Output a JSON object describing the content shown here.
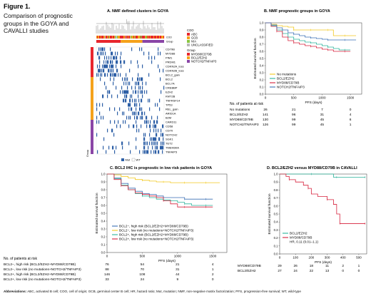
{
  "figure": {
    "label": "Figure 1.",
    "caption": "Comparison of prognostic groups in the GOYA and CAVALLI studies"
  },
  "panel_a": {
    "title": "A. NMF defined clusters in GOYA",
    "annotation_rows": [
      "COO",
      "Group"
    ],
    "genes": [
      "CD79B",
      "MYD88",
      "PIM1",
      "PRDM1",
      "CDKN2A_loss",
      "CDKN2B_loss",
      "BCL2_gain",
      "BCL2",
      "BCL7A",
      "CREBBP",
      "EZH2",
      "KMT2B",
      "TNFRSF14",
      "TP53",
      "REL_gain",
      "ARID1A",
      "B2M",
      "CARD11",
      "CD58",
      "CD70",
      "NOTCH2",
      "SGK1",
      "TET2",
      "TMEM30A",
      "TNFAIP3"
    ],
    "side_label": "Group",
    "coo_legend": {
      "title": "COO",
      "items": [
        {
          "label": "ABC",
          "color": "#e8262d"
        },
        {
          "label": "GCB",
          "color": "#f5a21b"
        },
        {
          "label": "N/A",
          "color": "#8bc640"
        },
        {
          "label": "UNCLASSIFIED",
          "color": "#b8b8b8"
        }
      ]
    },
    "group_legend": {
      "title": "Group",
      "items": [
        {
          "label": "MYD88/CD79B",
          "color": "#e8262d"
        },
        {
          "label": "BCL2/EZH2",
          "color": "#f5a21b"
        },
        {
          "label": "NOTCH2/TNFAIP3",
          "color": "#8a45a6"
        }
      ]
    },
    "mut_legend": {
      "mut": "Mut",
      "wt": "WT"
    }
  },
  "panel_b": {
    "title": "B. NMF prognostic groups in GOYA",
    "chart_data": {
      "type": "line",
      "xlabel": "PFS (days)",
      "ylabel": "Estimated survival function",
      "xlim": [
        0,
        1700
      ],
      "ylim": [
        0.0,
        1.0
      ],
      "xticks": [
        0,
        500,
        1000,
        1500
      ],
      "yticks": [
        0.0,
        0.1,
        0.2,
        0.3,
        0.4,
        0.5,
        0.6,
        0.7,
        0.8,
        0.9,
        1.0
      ],
      "legend_position": "bottom-left",
      "series": [
        {
          "name": "No mutations",
          "color": "#f2c81c",
          "x": [
            0,
            100,
            200,
            300,
            400,
            500,
            600,
            700,
            800,
            900,
            1000,
            1100,
            1200,
            1300,
            1400,
            1500,
            1600
          ],
          "y": [
            1.0,
            0.98,
            0.96,
            0.95,
            0.94,
            0.9,
            0.9,
            0.9,
            0.9,
            0.9,
            0.9,
            0.9,
            0.82,
            0.82,
            0.82,
            0.82,
            0.82
          ]
        },
        {
          "name": "BCL2/EZH2",
          "color": "#2bb39a",
          "x": [
            0,
            100,
            200,
            300,
            400,
            500,
            600,
            700,
            800,
            900,
            1000,
            1100,
            1200,
            1300,
            1400,
            1500
          ],
          "y": [
            1.0,
            0.96,
            0.9,
            0.85,
            0.8,
            0.77,
            0.75,
            0.73,
            0.72,
            0.7,
            0.68,
            0.66,
            0.64,
            0.62,
            0.62,
            0.62
          ]
        },
        {
          "name": "MYD88/CD79B",
          "color": "#d6203b",
          "x": [
            0,
            100,
            200,
            300,
            400,
            500,
            600,
            700,
            800,
            900,
            1000,
            1100,
            1200,
            1300,
            1400,
            1500
          ],
          "y": [
            1.0,
            0.95,
            0.88,
            0.8,
            0.75,
            0.72,
            0.7,
            0.68,
            0.67,
            0.65,
            0.63,
            0.62,
            0.6,
            0.6,
            0.6,
            0.6
          ]
        },
        {
          "name": "NOTCH2/TNFAIP3",
          "color": "#3a6fb5",
          "x": [
            0,
            100,
            200,
            300,
            400,
            500,
            600,
            700,
            800,
            900,
            1000,
            1100,
            1200,
            1300,
            1400,
            1500,
            1600
          ],
          "y": [
            1.0,
            0.97,
            0.93,
            0.9,
            0.86,
            0.84,
            0.82,
            0.8,
            0.79,
            0.78,
            0.77,
            0.76,
            0.76,
            0.76,
            0.76,
            0.76,
            0.76
          ]
        }
      ]
    },
    "risk_table": {
      "title": "No. of patients at risk",
      "rows": [
        {
          "label": "No mutations",
          "values": [
            "26",
            "21",
            "7",
            "0"
          ]
        },
        {
          "label": "BCL2/EZH2",
          "values": [
            "141",
            "96",
            "31",
            "4"
          ]
        },
        {
          "label": "MYD88/CD79B",
          "values": [
            "130",
            "99",
            "45",
            "6"
          ]
        },
        {
          "label": "NOTCH2/TNFAIP3",
          "values": [
            "126",
            "99",
            "45",
            "1"
          ]
        }
      ]
    }
  },
  "panel_c": {
    "title": "C. BCL2 IHC is prognostic in low risk patients in GOYA",
    "chart_data": {
      "type": "line",
      "xlabel": "PFS (days)",
      "ylabel": "Estimated survival function",
      "xlim": [
        0,
        1700
      ],
      "ylim": [
        0.0,
        1.0
      ],
      "xticks": [
        0,
        500,
        1000,
        1500
      ],
      "yticks": [
        0.0,
        0.1,
        0.2,
        0.3,
        0.4,
        0.5,
        0.6,
        0.7,
        0.8,
        0.9,
        1.0
      ],
      "legend_position": "bottom-left",
      "series": [
        {
          "name": "BCL2−, high risk (BCL2/EZH2+MYD88/CD79B)",
          "color": "#3a6fb5",
          "x": [
            0,
            100,
            200,
            300,
            400,
            500,
            600,
            700,
            800,
            900,
            1000,
            1100,
            1200,
            1300,
            1400,
            1500
          ],
          "y": [
            1.0,
            0.95,
            0.88,
            0.82,
            0.78,
            0.75,
            0.74,
            0.72,
            0.7,
            0.7,
            0.7,
            0.68,
            0.68,
            0.68,
            0.68,
            0.68
          ]
        },
        {
          "name": "BCL2−, low risk (no mutations+NOTCH2/TNFAIP3)",
          "color": "#f2c81c",
          "x": [
            0,
            100,
            200,
            300,
            400,
            500,
            600,
            700,
            800,
            900,
            1000,
            1100,
            1200,
            1300,
            1400,
            1500,
            1600
          ],
          "y": [
            1.0,
            0.99,
            0.97,
            0.95,
            0.93,
            0.92,
            0.91,
            0.9,
            0.9,
            0.89,
            0.89,
            0.89,
            0.89,
            0.89,
            0.89,
            0.89,
            0.89
          ]
        },
        {
          "name": "BCL2+, high risk (BCL2/EZH2+MYD88/CD79B)",
          "color": "#2bb39a",
          "x": [
            0,
            100,
            200,
            300,
            400,
            500,
            600,
            700,
            800,
            900,
            1000,
            1100,
            1200,
            1300,
            1400,
            1500
          ],
          "y": [
            1.0,
            0.94,
            0.86,
            0.8,
            0.75,
            0.72,
            0.7,
            0.68,
            0.67,
            0.66,
            0.64,
            0.62,
            0.6,
            0.6,
            0.6,
            0.6
          ]
        },
        {
          "name": "BCL2+, low risk (no mutations+NOTCH2/TNFAIP3)",
          "color": "#d6203b",
          "x": [
            0,
            100,
            200,
            300,
            400,
            500,
            600,
            700,
            800,
            900,
            1000,
            1100,
            1200,
            1300,
            1400,
            1500
          ],
          "y": [
            1.0,
            0.93,
            0.85,
            0.8,
            0.76,
            0.74,
            0.72,
            0.7,
            0.66,
            0.62,
            0.58,
            0.58,
            0.58,
            0.58,
            0.58,
            0.58
          ]
        }
      ]
    },
    "risk_table": {
      "title": "No. of patients at risk",
      "rows": [
        {
          "label": "BCL2−, high risk (BCL2/EZH2+MYD88/CD79B)",
          "values": [
            "76",
            "54",
            "21",
            "4"
          ]
        },
        {
          "label": "BCL2−, low risk (no mutations+NOTCH2/TNFAIP3)",
          "values": [
            "88",
            "70",
            "31",
            "1"
          ]
        },
        {
          "label": "BCL2+, high risk (BCL2/EZH2+MYD88/CD79B)",
          "values": [
            "146",
            "108",
            "44",
            "2"
          ]
        },
        {
          "label": "BCL2+, low risk (no mutations+NOTCH2/TNFAIP3)",
          "values": [
            "33",
            "24",
            "9",
            "0"
          ]
        }
      ]
    }
  },
  "panel_d": {
    "title": "D. BCL2/EZH2 versus MYD88/CD79B in CAVALLI",
    "chart_data": {
      "type": "line",
      "xlabel": "PFS (days)",
      "ylabel": "Estimated survival function",
      "xlim": [
        0,
        550
      ],
      "ylim": [
        0.0,
        1.0
      ],
      "xticks": [
        0,
        100,
        200,
        300,
        400,
        500
      ],
      "yticks": [
        0.0,
        0.1,
        0.2,
        0.3,
        0.4,
        0.5,
        0.6,
        0.7,
        0.8,
        0.9,
        1.0
      ],
      "legend_position": "bottom-left",
      "annotation": "HR, 0.11 (0.01–1.1)",
      "series": [
        {
          "name": "BCL2/EZH2",
          "color": "#2bb39a",
          "x": [
            0,
            100,
            200,
            300,
            340,
            360,
            400,
            500,
            540
          ],
          "y": [
            1.0,
            1.0,
            1.0,
            1.0,
            0.96,
            0.96,
            0.96,
            0.96,
            0.96
          ]
        },
        {
          "name": "MYD88/CD79B",
          "color": "#d6203b",
          "x": [
            0,
            40,
            60,
            100,
            150,
            180,
            200,
            240,
            300,
            340,
            360,
            380,
            400,
            500,
            540
          ],
          "y": [
            1.0,
            0.97,
            0.93,
            0.9,
            0.86,
            0.82,
            0.75,
            0.72,
            0.68,
            0.62,
            0.5,
            0.38,
            0.38,
            0.38,
            0.38
          ]
        }
      ]
    },
    "risk_table": {
      "rows": [
        {
          "label": "MYD88/CD79B",
          "values": [
            "29",
            "26",
            "18",
            "11",
            "2",
            "1"
          ]
        },
        {
          "label": "BCL2/EZH2",
          "values": [
            "27",
            "24",
            "22",
            "13",
            "0",
            "0"
          ]
        }
      ]
    }
  },
  "footer": {
    "bold": "Abbreviations:",
    "text": " ABC, activated B cell; COO, cell of origin; GCB, germinal center B cell; HR, hazard ratio; Mut, mutation; NMF, non-negative matrix factorization; PFS, progression-free survival; WT, wild-type"
  }
}
